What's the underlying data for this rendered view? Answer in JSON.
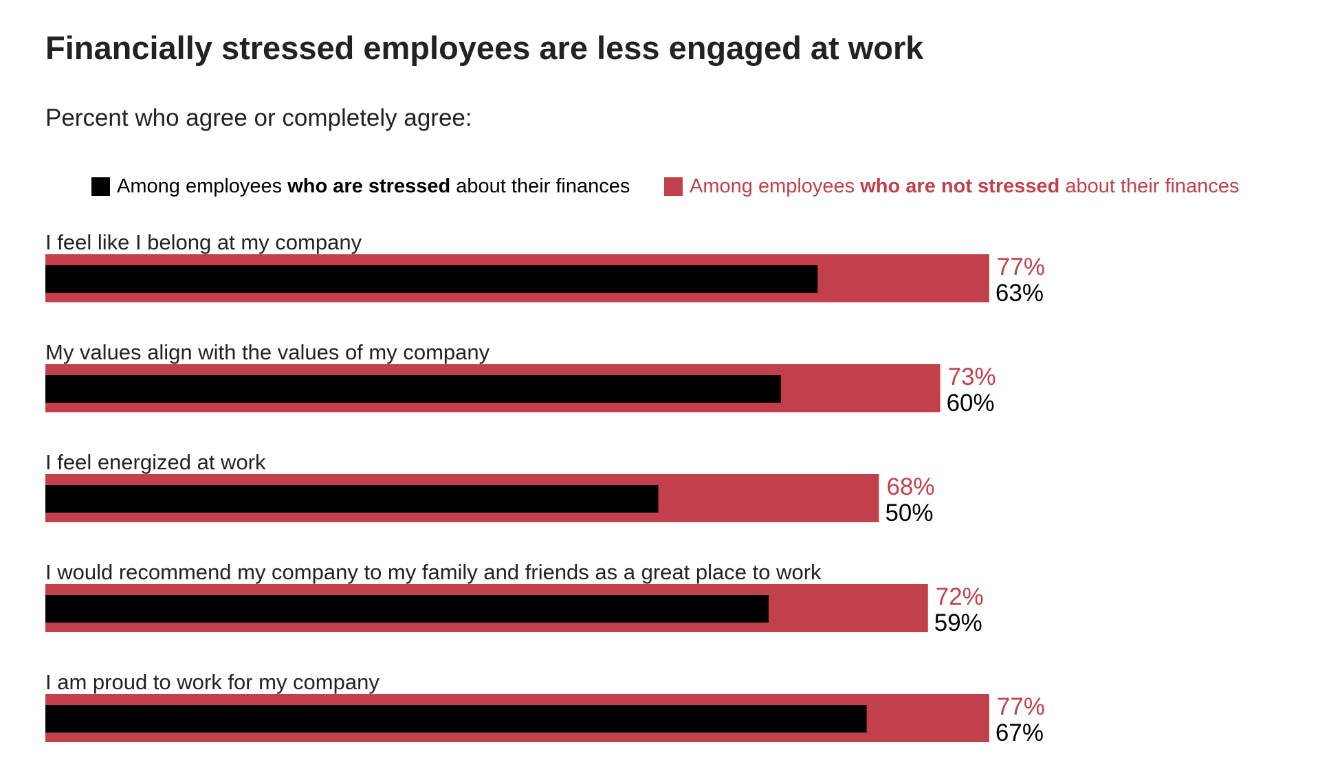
{
  "colors": {
    "stressed": "#000000",
    "not_stressed": "#c1404b",
    "text": "#222222"
  },
  "legend": {
    "stressed": {
      "prefix": "Among employees ",
      "bold": "who are stressed",
      "suffix": " about their finances"
    },
    "not_stressed": {
      "prefix": "Among employees ",
      "bold": "who are not stressed",
      "suffix": " about their finances"
    }
  },
  "chart_data": {
    "type": "bar",
    "orientation": "horizontal",
    "title": "Financially stressed employees are less engaged at work",
    "subtitle": "Percent who agree or completely agree:",
    "categories": [
      "I feel like I belong at my company",
      "My values align with the values of my company",
      "I feel energized at work",
      "I would recommend my company to my family and friends as a great place to work",
      "I am proud to work for my company"
    ],
    "series": [
      {
        "name": "Among employees who are not stressed about their finances",
        "values": [
          77,
          73,
          68,
          72,
          77
        ],
        "labels": [
          "77%",
          "73%",
          "68%",
          "72%",
          "77%"
        ]
      },
      {
        "name": "Among employees who are stressed about their finances",
        "values": [
          63,
          60,
          50,
          59,
          67
        ],
        "labels": [
          "63%",
          "60%",
          "50%",
          "59%",
          "67%"
        ]
      }
    ],
    "xlim": [
      0,
      100
    ],
    "grid": false,
    "legend_position": "top"
  }
}
